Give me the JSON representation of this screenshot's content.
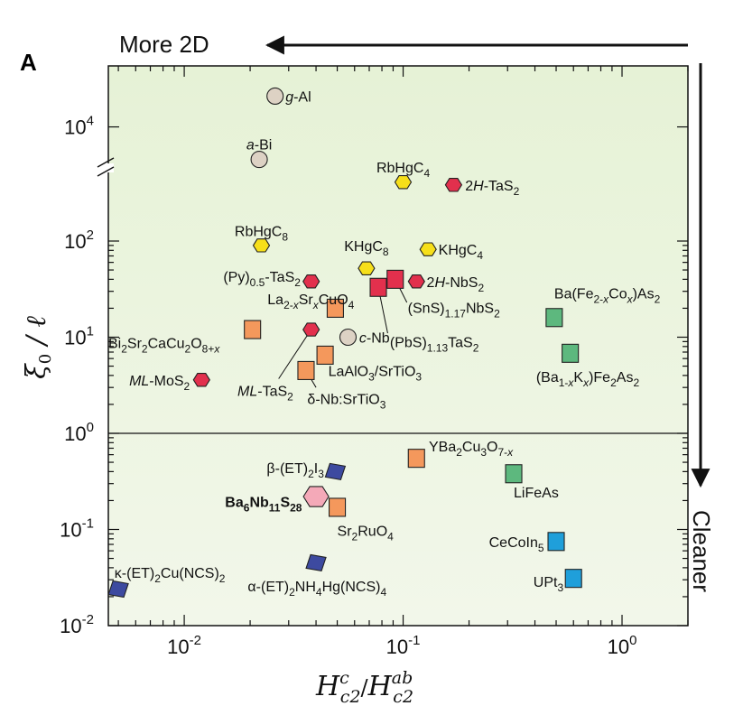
{
  "panel_label": "A",
  "arrows": {
    "top_label": "More 2D",
    "right_label": "Cleaner"
  },
  "colors": {
    "bg_top": "#e6f2d6",
    "bg_bottom": "#f2f7ea",
    "hexagon_red": "#e2304d",
    "hexagon_yellow": "#f6df1a",
    "hexagon_pink": "#f4a9b8",
    "square_orange": "#f4985c",
    "square_green": "#5db87e",
    "square_blue": "#1f9fda",
    "para_navy": "#3d4aa0",
    "circle_tan": "#ddd2c4"
  },
  "chart_data": {
    "type": "scatter",
    "title": "",
    "xlabel": {
      "main": "H",
      "sup1": "c",
      "sub1": "c2",
      "sep": "/",
      "main2": "H",
      "sup2": "ab",
      "sub2": "c2"
    },
    "ylabel": {
      "main": "ξ",
      "sub": "0",
      "rest": " / ℓ"
    },
    "xscale": "log",
    "yscale": "log",
    "xlim": [
      0.0045,
      2
    ],
    "ylim": [
      0.01,
      60000
    ],
    "y_axis_break": true,
    "reference_line_y": 1,
    "x_ticks": [
      {
        "v": 0.01,
        "base": "10",
        "exp": "-2"
      },
      {
        "v": 0.1,
        "base": "10",
        "exp": "-1"
      },
      {
        "v": 1,
        "base": "10",
        "exp": "0"
      }
    ],
    "y_ticks": [
      {
        "v": 0.01,
        "base": "10",
        "exp": "-2"
      },
      {
        "v": 0.1,
        "base": "10",
        "exp": "-1"
      },
      {
        "v": 1,
        "base": "10",
        "exp": "0"
      },
      {
        "v": 10,
        "base": "10",
        "exp": "1"
      },
      {
        "v": 100,
        "base": "10",
        "exp": "2"
      },
      {
        "v": 10000,
        "base": "10",
        "exp": "4"
      }
    ],
    "points": [
      {
        "name": "g-Al",
        "label": [
          [
            "g",
            "i"
          ],
          [
            "-Al",
            ""
          ]
        ],
        "shape": "circle",
        "color": "circle_tan",
        "x": 0.026,
        "y": 25000,
        "lx": 0.029,
        "ly": 25000,
        "anchor": "start"
      },
      {
        "name": "a-Bi",
        "label": [
          [
            "a",
            "i"
          ],
          [
            "-Bi",
            ""
          ]
        ],
        "shape": "circle",
        "color": "circle_tan",
        "x": 0.022,
        "y": 3800,
        "lx": 0.022,
        "ly": 6000,
        "anchor": "middle"
      },
      {
        "name": "RbHgC4",
        "label": [
          [
            "RbHgC",
            ""
          ],
          [
            "4",
            "sub"
          ]
        ],
        "shape": "hex",
        "color": "hexagon_yellow",
        "x": 0.1,
        "y": 1650,
        "lx": 0.1,
        "ly": 3050,
        "anchor": "middle"
      },
      {
        "name": "2H-TaS2",
        "label": [
          [
            "2",
            ""
          ],
          [
            "H",
            "i"
          ],
          [
            "-TaS",
            ""
          ],
          [
            "2",
            "sub"
          ]
        ],
        "shape": "hex",
        "color": "hexagon_red",
        "x": 0.17,
        "y": 1450,
        "lx": 0.192,
        "ly": 1450,
        "anchor": "start"
      },
      {
        "name": "RbHgC8",
        "label": [
          [
            "RbHgC",
            ""
          ],
          [
            "8",
            "sub"
          ]
        ],
        "shape": "hex",
        "color": "hexagon_yellow",
        "x": 0.0225,
        "y": 90,
        "lx": 0.0225,
        "ly": 165,
        "anchor": "middle"
      },
      {
        "name": "KHgC8",
        "label": [
          [
            "KHgC",
            ""
          ],
          [
            "8",
            "sub"
          ]
        ],
        "shape": "hex",
        "color": "hexagon_yellow",
        "x": 0.068,
        "y": 52,
        "lx": 0.068,
        "ly": 90,
        "anchor": "middle"
      },
      {
        "name": "KHgC4",
        "label": [
          [
            "KHgC",
            ""
          ],
          [
            "4",
            "sub"
          ]
        ],
        "shape": "hex",
        "color": "hexagon_yellow",
        "x": 0.13,
        "y": 82,
        "lx": 0.145,
        "ly": 82,
        "anchor": "start"
      },
      {
        "name": "(Py)0.5-TaS2",
        "label": [
          [
            "(Py)",
            ""
          ],
          [
            "0.5",
            "sub"
          ],
          [
            "-TaS",
            ""
          ],
          [
            "2",
            "sub"
          ]
        ],
        "shape": "hex",
        "color": "hexagon_red",
        "x": 0.038,
        "y": 38,
        "lx": 0.034,
        "ly": 43,
        "anchor": "end"
      },
      {
        "name": "2H-NbS2",
        "label": [
          [
            "2",
            ""
          ],
          [
            "H",
            "i"
          ],
          [
            "-NbS",
            ""
          ],
          [
            "2",
            "sub"
          ]
        ],
        "shape": "hex",
        "color": "hexagon_red",
        "x": 0.115,
        "y": 38,
        "lx": 0.128,
        "ly": 38,
        "anchor": "start"
      },
      {
        "name": "(SnS)1.17NbS2",
        "label": [
          [
            "(SnS)",
            ""
          ],
          [
            "1.17",
            "sub"
          ],
          [
            "NbS",
            ""
          ],
          [
            "2",
            "sub"
          ]
        ],
        "shape": "square",
        "color": "hexagon_red",
        "x": 0.092,
        "y": 40,
        "lx": 0.105,
        "ly": 20.5,
        "anchor": "start"
      },
      {
        "name": "(PbS)1.13TaS2",
        "label": [
          [
            "(PbS)",
            ""
          ],
          [
            "1.13",
            "sub"
          ],
          [
            "TaS",
            ""
          ],
          [
            "2",
            "sub"
          ]
        ],
        "shape": "square",
        "color": "hexagon_red",
        "x": 0.077,
        "y": 33,
        "lx": 0.087,
        "ly": 9.0,
        "anchor": "start"
      },
      {
        "name": "La2-xSrxCuO4",
        "label": [
          [
            "La",
            ""
          ],
          [
            "2-",
            "sub"
          ],
          [
            "x",
            "subi"
          ],
          [
            "Sr",
            ""
          ],
          [
            "x",
            "subi"
          ],
          [
            "CuO",
            ""
          ],
          [
            "4",
            "sub"
          ]
        ],
        "shape": "square",
        "color": "square_orange",
        "x": 0.049,
        "y": 20,
        "lx": 0.024,
        "ly": 25,
        "anchor": "start"
      },
      {
        "name": "Ba(Fe2-xCox)As2",
        "label": [
          [
            "Ba(Fe",
            ""
          ],
          [
            "2-",
            "sub"
          ],
          [
            "x",
            "subi"
          ],
          [
            "Co",
            ""
          ],
          [
            "x",
            "subi"
          ],
          [
            ")As",
            ""
          ],
          [
            "2",
            "sub"
          ]
        ],
        "shape": "square",
        "color": "square_green",
        "x": 0.49,
        "y": 16,
        "lx": 0.49,
        "ly": 29,
        "anchor": "start"
      },
      {
        "name": "Bi2Sr2CaCu2O8+x",
        "label": [
          [
            "Bi",
            ""
          ],
          [
            "2",
            "sub"
          ],
          [
            "Sr",
            ""
          ],
          [
            "2",
            "sub"
          ],
          [
            "CaCu",
            ""
          ],
          [
            "2",
            "sub"
          ],
          [
            "O",
            ""
          ],
          [
            "8+",
            "sub"
          ],
          [
            "x",
            "subi"
          ]
        ],
        "shape": "square",
        "color": "square_orange",
        "x": 0.0205,
        "y": 12,
        "lx": 0.0045,
        "ly": 8.8,
        "anchor": "start"
      },
      {
        "name": "c-Nb",
        "label": [
          [
            "c",
            "i"
          ],
          [
            "-Nb",
            ""
          ]
        ],
        "shape": "circle",
        "color": "circle_tan",
        "x": 0.056,
        "y": 10,
        "lx": 0.063,
        "ly": 10,
        "anchor": "start"
      },
      {
        "name": "ML-TaS2 point",
        "label": [],
        "shape": "hex",
        "color": "hexagon_red",
        "x": 0.038,
        "y": 12,
        "lx": 0.038,
        "ly": 12,
        "anchor": "start"
      },
      {
        "name": "LaAlO3/SrTiO3",
        "label": [
          [
            "LaAlO",
            ""
          ],
          [
            "3",
            "sub"
          ],
          [
            "/SrTiO",
            ""
          ],
          [
            "3",
            "sub"
          ]
        ],
        "shape": "square",
        "color": "square_orange",
        "x": 0.044,
        "y": 6.5,
        "lx": 0.0455,
        "ly": 4.5,
        "anchor": "start"
      },
      {
        "name": "(Ba1-xKx)Fe2As2",
        "label": [
          [
            "(Ba",
            ""
          ],
          [
            "1-",
            "sub"
          ],
          [
            "x",
            "subi"
          ],
          [
            "K",
            ""
          ],
          [
            "x",
            "subi"
          ],
          [
            ")Fe",
            ""
          ],
          [
            "2",
            "sub"
          ],
          [
            "As",
            ""
          ],
          [
            "2",
            "sub"
          ]
        ],
        "shape": "square",
        "color": "square_green",
        "x": 0.58,
        "y": 6.8,
        "lx": 0.405,
        "ly": 3.9,
        "anchor": "start"
      },
      {
        "name": "delta-Nb:SrTiO3",
        "label": [
          [
            "δ-Nb:SrTiO",
            ""
          ],
          [
            "3",
            "sub"
          ]
        ],
        "shape": "square",
        "color": "square_orange",
        "x": 0.036,
        "y": 4.5,
        "lx": 0.0365,
        "ly": 2.3,
        "anchor": "start"
      },
      {
        "name": "ML-MoS2",
        "label": [
          [
            "ML",
            "i"
          ],
          [
            "-MoS",
            ""
          ],
          [
            "2",
            "sub"
          ]
        ],
        "shape": "hex",
        "color": "hexagon_red",
        "x": 0.012,
        "y": 3.6,
        "lx": 0.0106,
        "ly": 3.6,
        "anchor": "end"
      },
      {
        "name": "ML-TaS2",
        "label": [
          [
            "ML",
            "i"
          ],
          [
            "-TaS",
            ""
          ],
          [
            "2",
            "sub"
          ]
        ],
        "shape": "none",
        "color": "hexagon_red",
        "x": 0.022,
        "y": 3.0,
        "lx": 0.0175,
        "ly": 2.8,
        "anchor": "start"
      },
      {
        "name": "YBa2Cu3O7-x",
        "label": [
          [
            "YBa",
            ""
          ],
          [
            "2",
            "sub"
          ],
          [
            "Cu",
            ""
          ],
          [
            "3",
            "sub"
          ],
          [
            "O",
            ""
          ],
          [
            "7-",
            "sub"
          ],
          [
            "x",
            "subi"
          ]
        ],
        "shape": "square",
        "color": "square_orange",
        "x": 0.115,
        "y": 0.55,
        "lx": 0.131,
        "ly": 0.74,
        "anchor": "start"
      },
      {
        "name": "beta-(ET)2I3",
        "label": [
          [
            "β-(ET)",
            ""
          ],
          [
            "2",
            "sub"
          ],
          [
            "I",
            ""
          ],
          [
            "3",
            "sub"
          ]
        ],
        "shape": "para",
        "color": "para_navy",
        "x": 0.049,
        "y": 0.4,
        "lx": 0.0435,
        "ly": 0.44,
        "anchor": "end"
      },
      {
        "name": "LiFeAs",
        "label": [
          [
            "LiFeAs",
            ""
          ]
        ],
        "shape": "square",
        "color": "square_green",
        "x": 0.32,
        "y": 0.38,
        "lx": 0.32,
        "ly": 0.245,
        "anchor": "start"
      },
      {
        "name": "Ba6Nb11S28",
        "label": [
          [
            "Ba",
            "b"
          ],
          [
            "6",
            "bsub"
          ],
          [
            "Nb",
            "b"
          ],
          [
            "11",
            "bsub"
          ],
          [
            "S",
            "b"
          ],
          [
            "28",
            "bsub"
          ]
        ],
        "shape": "hexbig",
        "color": "hexagon_pink",
        "x": 0.04,
        "y": 0.22,
        "lx": 0.0345,
        "ly": 0.195,
        "anchor": "end"
      },
      {
        "name": "Sr2RuO4",
        "label": [
          [
            "Sr",
            ""
          ],
          [
            "2",
            "sub"
          ],
          [
            "RuO",
            ""
          ],
          [
            "4",
            "sub"
          ]
        ],
        "shape": "square",
        "color": "square_orange",
        "x": 0.05,
        "y": 0.17,
        "lx": 0.05,
        "ly": 0.098,
        "anchor": "start"
      },
      {
        "name": "CeCoIn5",
        "label": [
          [
            "CeCoIn",
            ""
          ],
          [
            "5",
            "sub"
          ]
        ],
        "shape": "square",
        "color": "square_blue",
        "x": 0.5,
        "y": 0.075,
        "lx": 0.44,
        "ly": 0.075,
        "anchor": "end"
      },
      {
        "name": "UPt3",
        "label": [
          [
            "UPt",
            ""
          ],
          [
            "3",
            "sub"
          ]
        ],
        "shape": "square",
        "color": "square_blue",
        "x": 0.6,
        "y": 0.031,
        "lx": 0.54,
        "ly": 0.029,
        "anchor": "end"
      },
      {
        "name": "alpha-(ET)2NH4Hg(NCS)4",
        "label": [
          [
            "α-(ET)",
            ""
          ],
          [
            "2",
            "sub"
          ],
          [
            "NH",
            ""
          ],
          [
            "4",
            "sub"
          ],
          [
            "Hg(NCS)",
            ""
          ],
          [
            "4",
            "sub"
          ]
        ],
        "shape": "para",
        "color": "para_navy",
        "x": 0.04,
        "y": 0.045,
        "lx": 0.0195,
        "ly": 0.026,
        "anchor": "start"
      },
      {
        "name": "kappa-(ET)2Cu(NCS)2",
        "label": [
          [
            "κ-(ET)",
            ""
          ],
          [
            "2",
            "sub"
          ],
          [
            "Cu(NCS)",
            ""
          ],
          [
            "2",
            "sub"
          ]
        ],
        "shape": "para",
        "color": "para_navy",
        "x": 0.005,
        "y": 0.024,
        "lx": 0.0048,
        "ly": 0.036,
        "anchor": "start"
      }
    ],
    "leaders": [
      {
        "name": "sns-leader",
        "x1": 0.104,
        "y1": 23,
        "x2": 0.092,
        "y2": 40
      },
      {
        "name": "pbs-leader",
        "x1": 0.085,
        "y1": 11,
        "x2": 0.077,
        "y2": 33
      },
      {
        "name": "la2-leader",
        "x1": 0.045,
        "y1": 21,
        "x2": 0.049,
        "y2": 20
      },
      {
        "name": "mlta-leader",
        "x1": 0.027,
        "y1": 3.7,
        "x2": 0.038,
        "y2": 12
      },
      {
        "name": "delta-leader",
        "x1": 0.04,
        "y1": 3.0,
        "x2": 0.036,
        "y2": 4.5
      }
    ]
  }
}
